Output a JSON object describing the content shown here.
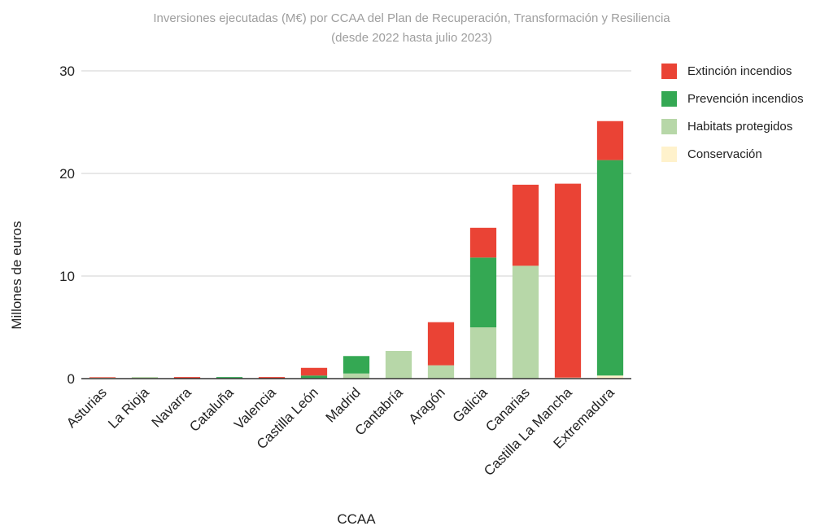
{
  "chart_data": {
    "type": "bar",
    "stacked": true,
    "title": "Inversiones ejecutadas (M€) por CCAA del Plan de Recuperación, Transformación y Resiliencia",
    "subtitle": "(desde 2022 hasta julio 2023)",
    "xlabel": "CCAA",
    "ylabel": "Millones de euros",
    "ylim": [
      0,
      30
    ],
    "yticks": [
      0,
      10,
      20,
      30
    ],
    "grid": true,
    "legend_position": "right",
    "categories": [
      "Asturias",
      "La Rioja",
      "Navarra",
      "Cataluña",
      "Valencia",
      "Castilla León",
      "Madrid",
      "Cantabría",
      "Aragón",
      "Galicia",
      "Canarias",
      "Castilla La Mancha",
      "Extremadura"
    ],
    "series": [
      {
        "name": "Conservación",
        "color": "#fff2cc",
        "values": [
          0.1,
          0,
          0,
          0,
          0,
          0,
          0,
          0,
          0,
          0,
          0,
          0.1,
          0.3
        ]
      },
      {
        "name": "Habitats protegidos",
        "color": "#b7d7a8",
        "values": [
          0,
          0.15,
          0,
          0.05,
          0,
          0.05,
          0.5,
          2.7,
          1.3,
          5.0,
          11.0,
          0,
          0
        ]
      },
      {
        "name": "Prevención incendios",
        "color": "#34a853",
        "values": [
          0,
          0,
          0,
          0.1,
          0,
          0.25,
          1.7,
          0,
          0,
          6.8,
          0,
          0,
          21.0
        ]
      },
      {
        "name": "Extinción incendios",
        "color": "#ea4335",
        "values": [
          0.05,
          0,
          0.15,
          0,
          0.15,
          0.75,
          0,
          0,
          4.2,
          2.9,
          7.9,
          18.9,
          3.8
        ]
      }
    ],
    "legend_order": [
      "Extinción incendios",
      "Prevención incendios",
      "Habitats protegidos",
      "Conservación"
    ]
  }
}
